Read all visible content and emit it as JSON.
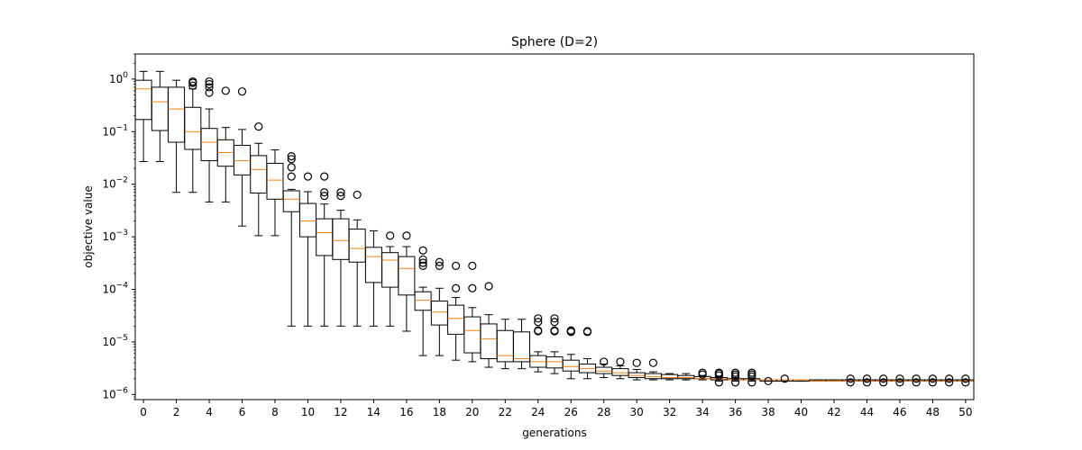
{
  "chart_data": {
    "type": "box",
    "title": "Sphere (D=2)",
    "xlabel": "generations",
    "ylabel": "objective value",
    "yscale": "log",
    "ylim": [
      8e-07,
      3
    ],
    "xlim": [
      -0.5,
      50.5
    ],
    "xticks": [
      0,
      2,
      4,
      6,
      8,
      10,
      12,
      14,
      16,
      18,
      20,
      22,
      24,
      26,
      28,
      30,
      32,
      34,
      36,
      38,
      40,
      42,
      44,
      46,
      48,
      50
    ],
    "yticks": [
      {
        "value": 1e-06,
        "base": "10",
        "exp": "−6"
      },
      {
        "value": 1e-05,
        "base": "10",
        "exp": "−5"
      },
      {
        "value": 0.0001,
        "base": "10",
        "exp": "−4"
      },
      {
        "value": 0.001,
        "base": "10",
        "exp": "−3"
      },
      {
        "value": 0.01,
        "base": "10",
        "exp": "−2"
      },
      {
        "value": 0.1,
        "base": "10",
        "exp": "−1"
      },
      {
        "value": 1,
        "base": "10",
        "exp": "0"
      }
    ],
    "grid": false,
    "colors": {
      "box": "#000000",
      "median": "#ff7f0e",
      "flier": "#000000"
    },
    "boxes": [
      {
        "x": 0,
        "whislo": 0.027,
        "q1": 0.17,
        "med": 0.65,
        "q3": 0.95,
        "whishi": 1.4,
        "fliers": []
      },
      {
        "x": 1,
        "whislo": 0.027,
        "q1": 0.105,
        "med": 0.37,
        "q3": 0.7,
        "whishi": 1.4,
        "fliers": []
      },
      {
        "x": 2,
        "whislo": 0.007,
        "q1": 0.063,
        "med": 0.27,
        "q3": 0.7,
        "whishi": 0.95,
        "fliers": []
      },
      {
        "x": 3,
        "whislo": 0.007,
        "q1": 0.046,
        "med": 0.1,
        "q3": 0.29,
        "whishi": 0.65,
        "fliers": [
          0.75,
          0.85,
          0.9
        ]
      },
      {
        "x": 4,
        "whislo": 0.0046,
        "q1": 0.028,
        "med": 0.063,
        "q3": 0.115,
        "whishi": 0.27,
        "fliers": [
          0.55,
          0.7,
          0.8,
          0.9
        ]
      },
      {
        "x": 5,
        "whislo": 0.0046,
        "q1": 0.022,
        "med": 0.04,
        "q3": 0.07,
        "whishi": 0.12,
        "fliers": [
          0.6
        ]
      },
      {
        "x": 6,
        "whislo": 0.0016,
        "q1": 0.015,
        "med": 0.028,
        "q3": 0.055,
        "whishi": 0.11,
        "fliers": [
          0.58
        ]
      },
      {
        "x": 7,
        "whislo": 0.00105,
        "q1": 0.0068,
        "med": 0.019,
        "q3": 0.035,
        "whishi": 0.06,
        "fliers": [
          0.125
        ]
      },
      {
        "x": 8,
        "whislo": 0.00105,
        "q1": 0.0052,
        "med": 0.012,
        "q3": 0.025,
        "whishi": 0.045,
        "fliers": []
      },
      {
        "x": 9,
        "whislo": 2e-05,
        "q1": 0.003,
        "med": 0.0052,
        "q3": 0.0075,
        "whishi": 0.008,
        "fliers": [
          0.014,
          0.021,
          0.03,
          0.034
        ]
      },
      {
        "x": 10,
        "whislo": 2e-05,
        "q1": 0.001,
        "med": 0.002,
        "q3": 0.0043,
        "whishi": 0.0072,
        "fliers": [
          0.014
        ]
      },
      {
        "x": 11,
        "whislo": 2e-05,
        "q1": 0.00044,
        "med": 0.0012,
        "q3": 0.0022,
        "whishi": 0.0042,
        "fliers": [
          0.006,
          0.007,
          0.014
        ]
      },
      {
        "x": 12,
        "whislo": 2e-05,
        "q1": 0.00037,
        "med": 0.00085,
        "q3": 0.0022,
        "whishi": 0.0032,
        "fliers": [
          0.006,
          0.007
        ]
      },
      {
        "x": 13,
        "whislo": 2e-05,
        "q1": 0.00033,
        "med": 0.0006,
        "q3": 0.0014,
        "whishi": 0.0021,
        "fliers": [
          0.0063
        ]
      },
      {
        "x": 14,
        "whislo": 2e-05,
        "q1": 0.000135,
        "med": 0.00042,
        "q3": 0.00063,
        "whishi": 0.0013,
        "fliers": []
      },
      {
        "x": 15,
        "whislo": 2e-05,
        "q1": 0.00011,
        "med": 0.00036,
        "q3": 0.0005,
        "whishi": 0.00065,
        "fliers": [
          0.00105
        ]
      },
      {
        "x": 16,
        "whislo": 1.6e-05,
        "q1": 7.8e-05,
        "med": 0.00025,
        "q3": 0.00042,
        "whishi": 0.00065,
        "fliers": [
          0.00105
        ]
      },
      {
        "x": 17,
        "whislo": 5.5e-06,
        "q1": 4e-05,
        "med": 6.2e-05,
        "q3": 9e-05,
        "whishi": 0.00011,
        "fliers": [
          0.00028,
          0.00032,
          0.00037,
          0.00055
        ]
      },
      {
        "x": 18,
        "whislo": 5.5e-06,
        "q1": 2.1e-05,
        "med": 3.7e-05,
        "q3": 6e-05,
        "whishi": 0.000105,
        "fliers": [
          0.00028,
          0.00033
        ]
      },
      {
        "x": 19,
        "whislo": 4.5e-06,
        "q1": 1.4e-05,
        "med": 2.8e-05,
        "q3": 5e-05,
        "whishi": 7e-05,
        "fliers": [
          0.000105,
          0.00028
        ]
      },
      {
        "x": 20,
        "whislo": 4.2e-06,
        "q1": 6.2e-06,
        "med": 1.65e-05,
        "q3": 3e-05,
        "whishi": 4.5e-05,
        "fliers": [
          0.000105,
          0.00028
        ]
      },
      {
        "x": 21,
        "whislo": 3.3e-06,
        "q1": 4.8e-06,
        "med": 1.15e-05,
        "q3": 2.2e-05,
        "whishi": 3.3e-05,
        "fliers": [
          0.000115
        ]
      },
      {
        "x": 22,
        "whislo": 3.1e-06,
        "q1": 4.2e-06,
        "med": 5.5e-06,
        "q3": 1.65e-05,
        "whishi": 2.7e-05,
        "fliers": []
      },
      {
        "x": 23,
        "whislo": 3.1e-06,
        "q1": 4.2e-06,
        "med": 4.8e-06,
        "q3": 1.55e-05,
        "whishi": 2.7e-05,
        "fliers": []
      },
      {
        "x": 24,
        "whislo": 2.7e-06,
        "q1": 3.3e-06,
        "med": 4.2e-06,
        "q3": 5.5e-06,
        "whishi": 6.5e-06,
        "fliers": [
          1.6e-05,
          1.65e-05,
          2.4e-05,
          2.8e-05
        ]
      },
      {
        "x": 25,
        "whislo": 2.5e-06,
        "q1": 3.2e-06,
        "med": 4.2e-06,
        "q3": 5.2e-06,
        "whishi": 6.5e-06,
        "fliers": [
          1.6e-05,
          1.65e-05,
          2.4e-05,
          2.8e-05
        ]
      },
      {
        "x": 26,
        "whislo": 2e-06,
        "q1": 2.8e-06,
        "med": 3.4e-06,
        "q3": 4.5e-06,
        "whishi": 5.8e-06,
        "fliers": [
          1.55e-05,
          1.6e-05,
          1.65e-05
        ]
      },
      {
        "x": 27,
        "whislo": 2e-06,
        "q1": 2.6e-06,
        "med": 3.1e-06,
        "q3": 3.8e-06,
        "whishi": 4.8e-06,
        "fliers": [
          1.55e-05,
          1.6e-05
        ]
      },
      {
        "x": 28,
        "whislo": 2.1e-06,
        "q1": 2.5e-06,
        "med": 2.8e-06,
        "q3": 3.3e-06,
        "whishi": 3.8e-06,
        "fliers": [
          4.2e-06
        ]
      },
      {
        "x": 29,
        "whislo": 2e-06,
        "q1": 2.3e-06,
        "med": 2.6e-06,
        "q3": 3.1e-06,
        "whishi": 3.5e-06,
        "fliers": [
          4.2e-06
        ]
      },
      {
        "x": 30,
        "whislo": 1.9e-06,
        "q1": 2.1e-06,
        "med": 2.3e-06,
        "q3": 2.6e-06,
        "whishi": 3e-06,
        "fliers": [
          4e-06
        ]
      },
      {
        "x": 31,
        "whislo": 1.9e-06,
        "q1": 2e-06,
        "med": 2.2e-06,
        "q3": 2.5e-06,
        "whishi": 2.7e-06,
        "fliers": [
          4e-06
        ]
      },
      {
        "x": 32,
        "whislo": 1.9e-06,
        "q1": 2e-06,
        "med": 2.1e-06,
        "q3": 2.4e-06,
        "whishi": 2.5e-06,
        "fliers": []
      },
      {
        "x": 33,
        "whislo": 1.9e-06,
        "q1": 2e-06,
        "med": 2.1e-06,
        "q3": 2.3e-06,
        "whishi": 2.5e-06,
        "fliers": []
      },
      {
        "x": 34,
        "whislo": 1.9e-06,
        "q1": 2e-06,
        "med": 2e-06,
        "q3": 2.2e-06,
        "whishi": 2.3e-06,
        "fliers": [
          2.4e-06,
          2.6e-06
        ]
      },
      {
        "x": 35,
        "whislo": 1.8e-06,
        "q1": 1.9e-06,
        "med": 2e-06,
        "q3": 2.1e-06,
        "whishi": 2.2e-06,
        "fliers": [
          1.7e-06,
          2.3e-06,
          2.5e-06,
          2.6e-06
        ]
      },
      {
        "x": 36,
        "whislo": 1.8e-06,
        "q1": 1.9e-06,
        "med": 1.9e-06,
        "q3": 2e-06,
        "whishi": 2.1e-06,
        "fliers": [
          1.7e-06,
          2.2e-06,
          2.4e-06,
          2.6e-06
        ]
      },
      {
        "x": 37,
        "whislo": 1.8e-06,
        "q1": 1.9e-06,
        "med": 1.9e-06,
        "q3": 2e-06,
        "whishi": 2e-06,
        "fliers": [
          1.7e-06,
          2.2e-06,
          2.4e-06,
          2.6e-06
        ]
      },
      {
        "x": 38,
        "whislo": 1.8e-06,
        "q1": 1.8e-06,
        "med": 1.9e-06,
        "q3": 1.9e-06,
        "whishi": 1.9e-06,
        "fliers": [
          1.8e-06
        ]
      },
      {
        "x": 39,
        "whislo": 1.8e-06,
        "q1": 1.8e-06,
        "med": 1.9e-06,
        "q3": 1.9e-06,
        "whishi": 1.9e-06,
        "fliers": [
          2e-06
        ]
      },
      {
        "x": 40,
        "whislo": 1.8e-06,
        "q1": 1.8e-06,
        "med": 1.9e-06,
        "q3": 1.9e-06,
        "whishi": 1.9e-06,
        "fliers": []
      },
      {
        "x": 41,
        "whislo": 1.8e-06,
        "q1": 1.8e-06,
        "med": 1.8e-06,
        "q3": 1.9e-06,
        "whishi": 1.9e-06,
        "fliers": []
      },
      {
        "x": 42,
        "whislo": 1.8e-06,
        "q1": 1.8e-06,
        "med": 1.8e-06,
        "q3": 1.9e-06,
        "whishi": 1.9e-06,
        "fliers": []
      },
      {
        "x": 43,
        "whislo": 1.8e-06,
        "q1": 1.8e-06,
        "med": 1.8e-06,
        "q3": 1.9e-06,
        "whishi": 1.9e-06,
        "fliers": [
          1.7e-06,
          2e-06
        ]
      },
      {
        "x": 44,
        "whislo": 1.8e-06,
        "q1": 1.8e-06,
        "med": 1.8e-06,
        "q3": 1.9e-06,
        "whishi": 1.9e-06,
        "fliers": [
          1.7e-06,
          2e-06
        ]
      },
      {
        "x": 45,
        "whislo": 1.8e-06,
        "q1": 1.8e-06,
        "med": 1.8e-06,
        "q3": 1.9e-06,
        "whishi": 1.9e-06,
        "fliers": [
          1.7e-06,
          2e-06
        ]
      },
      {
        "x": 46,
        "whislo": 1.8e-06,
        "q1": 1.8e-06,
        "med": 1.8e-06,
        "q3": 1.9e-06,
        "whishi": 1.9e-06,
        "fliers": [
          1.7e-06,
          2e-06
        ]
      },
      {
        "x": 47,
        "whislo": 1.8e-06,
        "q1": 1.8e-06,
        "med": 1.8e-06,
        "q3": 1.9e-06,
        "whishi": 1.9e-06,
        "fliers": [
          1.7e-06,
          2e-06
        ]
      },
      {
        "x": 48,
        "whislo": 1.8e-06,
        "q1": 1.8e-06,
        "med": 1.8e-06,
        "q3": 1.9e-06,
        "whishi": 1.9e-06,
        "fliers": [
          1.7e-06,
          2e-06
        ]
      },
      {
        "x": 49,
        "whislo": 1.8e-06,
        "q1": 1.8e-06,
        "med": 1.8e-06,
        "q3": 1.9e-06,
        "whishi": 1.9e-06,
        "fliers": [
          1.7e-06,
          2e-06
        ]
      },
      {
        "x": 50,
        "whislo": 1.8e-06,
        "q1": 1.8e-06,
        "med": 1.8e-06,
        "q3": 1.9e-06,
        "whishi": 1.9e-06,
        "fliers": [
          1.7e-06,
          2e-06
        ]
      }
    ]
  }
}
